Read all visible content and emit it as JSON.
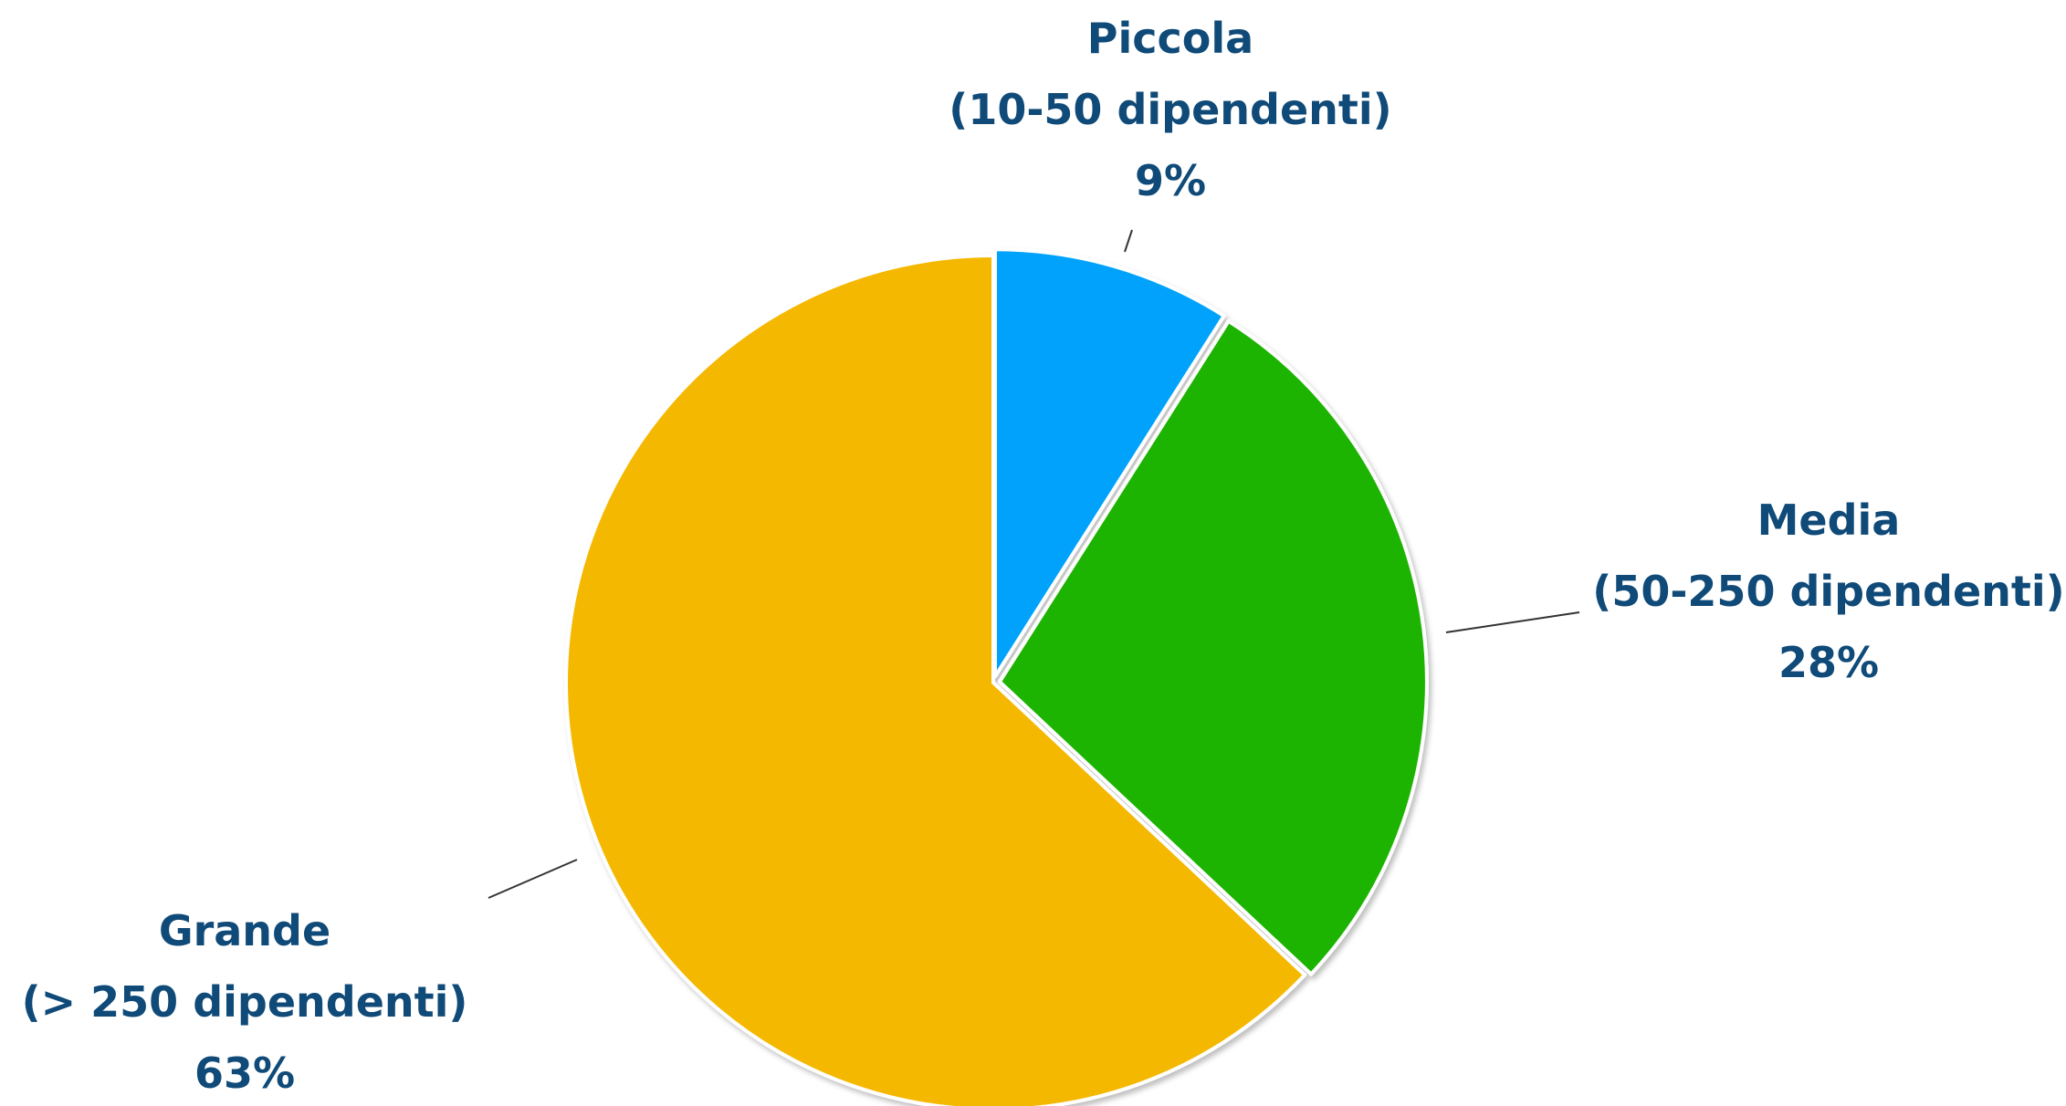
{
  "chart_data": {
    "type": "pie",
    "title": "",
    "colors": {
      "label_text": "#0f4a78",
      "leader_line": "#333333",
      "slice_border": "#ffffff"
    },
    "slices": [
      {
        "name": "Piccola",
        "range": "(10-50 dipendenti)",
        "value": 9,
        "label": "9%",
        "color": "#03a2fb"
      },
      {
        "name": "Media",
        "range": "(50-250 dipendenti)",
        "value": 28,
        "label": "28%",
        "color": "#1fb406"
      },
      {
        "name": "Grande",
        "range": "(> 250 dipendenti)",
        "value": 63,
        "label": "63%",
        "color": "#f5b800"
      }
    ]
  }
}
